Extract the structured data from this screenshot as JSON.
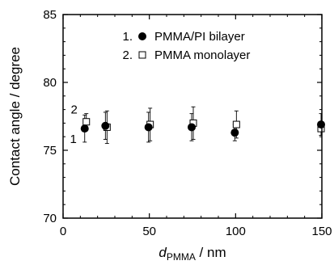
{
  "chart_data": {
    "type": "scatter",
    "xlabel": "d",
    "xlabel_subscript": "PMMA",
    "xlabel_unit": " / nm",
    "ylabel": "Contact angle / degree",
    "xlim": [
      0,
      150
    ],
    "ylim": [
      70,
      85
    ],
    "xticks": [
      0,
      50,
      100,
      150
    ],
    "yticks": [
      70,
      75,
      80,
      85
    ],
    "grid": false,
    "legend_position": "top-right",
    "series": [
      {
        "index": "1.",
        "name": "PMMA/PI bilayer",
        "marker": "filled-circle",
        "curve_label": "1",
        "x": [
          13,
          25,
          50,
          75,
          100,
          150
        ],
        "y": [
          76.6,
          76.8,
          76.7,
          76.7,
          76.3,
          76.9
        ],
        "err": [
          1.0,
          1.0,
          1.1,
          1.0,
          0.6,
          0.8
        ]
      },
      {
        "index": "2.",
        "name": "PMMA monolayer",
        "marker": "open-square",
        "curve_label": "2",
        "x": [
          13,
          25,
          50,
          75,
          100,
          150
        ],
        "y": [
          77.1,
          76.7,
          76.9,
          77.0,
          76.9,
          76.6
        ],
        "err": [
          0.6,
          1.2,
          1.2,
          1.2,
          1.0,
          1.1
        ]
      }
    ]
  }
}
